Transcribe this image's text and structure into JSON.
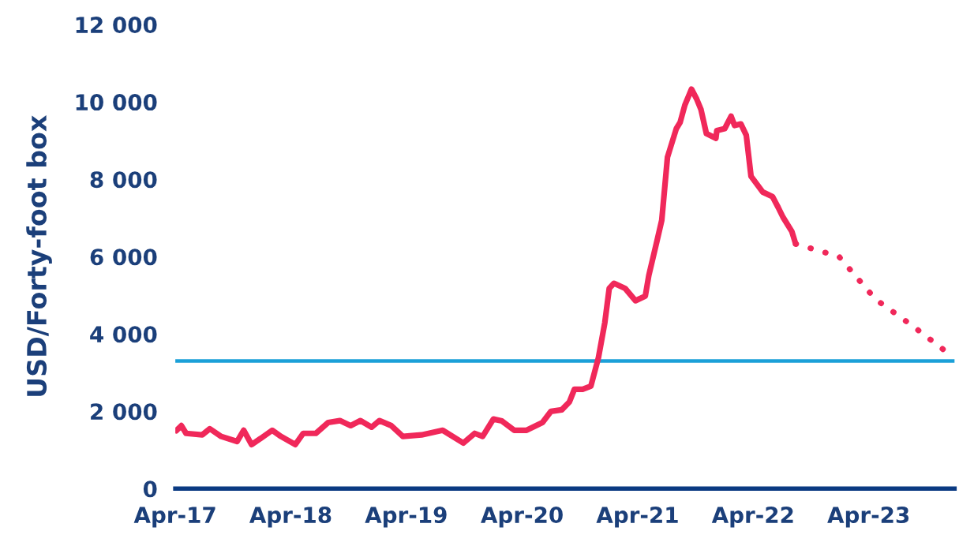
{
  "chart_data": {
    "type": "line",
    "ylabel": "USD/Forty-foot box",
    "series": [
      {
        "color": "#f0285a",
        "line_style": "solid",
        "x": [
          "2017-04-04",
          "2017-04-20",
          "2017-05-05",
          "2017-06-25",
          "2017-07-19",
          "2017-08-24",
          "2017-10-13",
          "2017-11-03",
          "2017-11-28",
          "2017-12-27",
          "2018-02-01",
          "2018-03-01",
          "2018-04-15",
          "2018-05-10",
          "2018-06-19",
          "2018-07-28",
          "2018-09-03",
          "2018-10-07",
          "2018-11-07",
          "2018-12-12",
          "2019-01-06",
          "2019-02-12",
          "2019-03-21",
          "2019-05-19",
          "2019-07-25",
          "2019-09-28",
          "2019-11-03",
          "2019-11-28",
          "2020-01-01",
          "2020-01-28",
          "2020-03-07",
          "2020-04-15",
          "2020-06-04",
          "2020-07-01",
          "2020-08-04",
          "2020-08-28",
          "2020-09-13",
          "2020-10-09",
          "2020-11-04",
          "2020-11-28",
          "2020-12-18",
          "2021-01-01",
          "2021-01-16",
          "2021-02-20",
          "2021-03-25",
          "2021-04-25",
          "2021-05-06",
          "2021-06-01",
          "2021-06-16",
          "2021-07-04",
          "2021-08-01",
          "2021-08-13",
          "2021-08-28",
          "2021-09-18",
          "2021-10-04",
          "2021-10-18",
          "2021-11-04",
          "2021-12-04",
          "2021-12-07",
          "2022-01-01",
          "2022-01-21",
          "2022-02-01",
          "2022-02-21",
          "2022-03-10",
          "2022-03-25",
          "2022-05-01",
          "2022-06-01",
          "2022-06-19",
          "2022-07-04",
          "2022-08-01",
          "2022-08-13"
        ],
        "values": [
          1500,
          1630,
          1430,
          1390,
          1550,
          1350,
          1220,
          1510,
          1140,
          1300,
          1510,
          1350,
          1140,
          1430,
          1430,
          1710,
          1760,
          1630,
          1760,
          1590,
          1760,
          1630,
          1350,
          1390,
          1510,
          1180,
          1430,
          1350,
          1800,
          1750,
          1510,
          1510,
          1710,
          2000,
          2040,
          2240,
          2570,
          2570,
          2650,
          3390,
          4290,
          5180,
          5310,
          5180,
          4860,
          4980,
          5510,
          6410,
          6940,
          8570,
          9310,
          9470,
          9920,
          10330,
          10080,
          9800,
          9180,
          9060,
          9260,
          9310,
          9630,
          9390,
          9430,
          9140,
          8080,
          7670,
          7550,
          7270,
          7020,
          6650,
          6330
        ]
      },
      {
        "color": "#f0285a",
        "line_style": "dotted",
        "x": [
          "2022-08-13",
          "2022-12-28",
          "2023-04-22",
          "2023-08-19",
          "2023-12-13"
        ],
        "values": [
          6330,
          6000,
          4900,
          4200,
          3470
        ]
      }
    ],
    "xlim": [
      "2017-04-01",
      "2023-12-28"
    ],
    "xticks": [
      {
        "value": "2017-04-01",
        "label": "Apr-17"
      },
      {
        "value": "2018-04-01",
        "label": "Apr-18"
      },
      {
        "value": "2019-04-01",
        "label": "Apr-19"
      },
      {
        "value": "2020-04-01",
        "label": "Apr-20"
      },
      {
        "value": "2021-04-01",
        "label": "Apr-21"
      },
      {
        "value": "2022-04-01",
        "label": "Apr-22"
      },
      {
        "value": "2023-04-01",
        "label": "Apr-23"
      }
    ],
    "ylim": [
      0,
      12000
    ],
    "yticks": [
      0,
      {
        "value": 2000,
        "label": "2 000"
      },
      {
        "value": 4000,
        "label": "4 000"
      },
      {
        "value": 6000,
        "label": "6 000"
      },
      {
        "value": 8000,
        "label": "8 000"
      },
      {
        "value": 10000,
        "label": "10 000"
      },
      {
        "value": 12000,
        "label": "12 000"
      }
    ],
    "ref_lines": [
      {
        "axis": "y",
        "value": 3300,
        "color": "#1ba0d8",
        "line_style": "solid"
      }
    ],
    "grid": false,
    "marker": "none"
  }
}
